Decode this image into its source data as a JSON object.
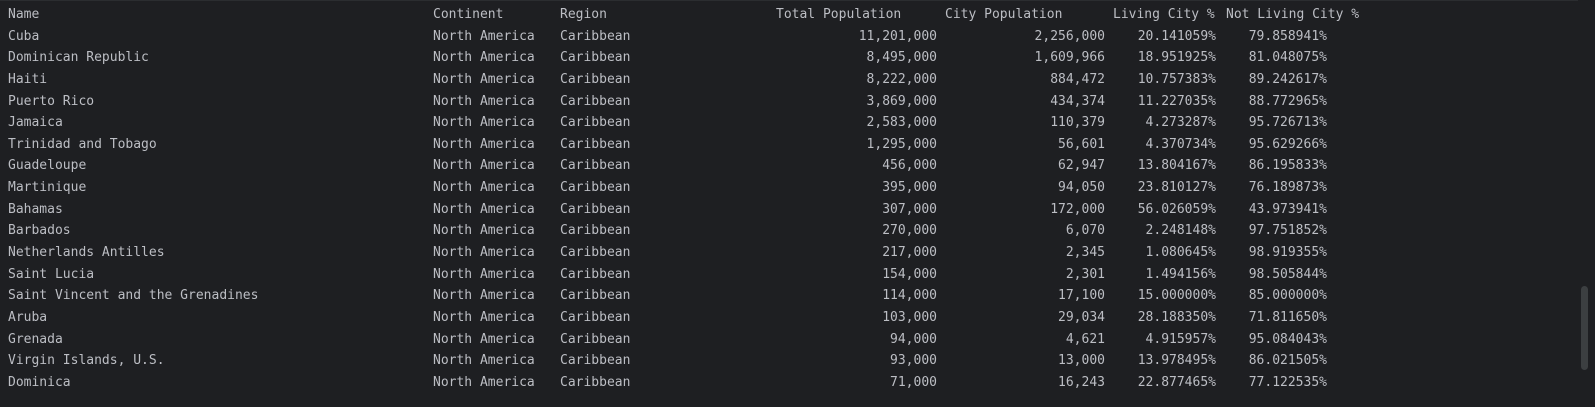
{
  "table": {
    "columns": {
      "name": "Name",
      "continent": "Continent",
      "region": "Region",
      "total_population": "Total Population",
      "city_population": "City Population",
      "living_city_pct": "Living City %",
      "not_living_city_pct": "Not Living City %"
    },
    "rows": [
      {
        "name": "Cuba",
        "continent": "North America",
        "region": "Caribbean",
        "total": "11,201,000",
        "city": "2,256,000",
        "living": "20.141059%",
        "not_living": "79.858941%"
      },
      {
        "name": "Dominican Republic",
        "continent": "North America",
        "region": "Caribbean",
        "total": "8,495,000",
        "city": "1,609,966",
        "living": "18.951925%",
        "not_living": "81.048075%"
      },
      {
        "name": "Haiti",
        "continent": "North America",
        "region": "Caribbean",
        "total": "8,222,000",
        "city": "884,472",
        "living": "10.757383%",
        "not_living": "89.242617%"
      },
      {
        "name": "Puerto Rico",
        "continent": "North America",
        "region": "Caribbean",
        "total": "3,869,000",
        "city": "434,374",
        "living": "11.227035%",
        "not_living": "88.772965%"
      },
      {
        "name": "Jamaica",
        "continent": "North America",
        "region": "Caribbean",
        "total": "2,583,000",
        "city": "110,379",
        "living": "4.273287%",
        "not_living": "95.726713%"
      },
      {
        "name": "Trinidad and Tobago",
        "continent": "North America",
        "region": "Caribbean",
        "total": "1,295,000",
        "city": "56,601",
        "living": "4.370734%",
        "not_living": "95.629266%"
      },
      {
        "name": "Guadeloupe",
        "continent": "North America",
        "region": "Caribbean",
        "total": "456,000",
        "city": "62,947",
        "living": "13.804167%",
        "not_living": "86.195833%"
      },
      {
        "name": "Martinique",
        "continent": "North America",
        "region": "Caribbean",
        "total": "395,000",
        "city": "94,050",
        "living": "23.810127%",
        "not_living": "76.189873%"
      },
      {
        "name": "Bahamas",
        "continent": "North America",
        "region": "Caribbean",
        "total": "307,000",
        "city": "172,000",
        "living": "56.026059%",
        "not_living": "43.973941%"
      },
      {
        "name": "Barbados",
        "continent": "North America",
        "region": "Caribbean",
        "total": "270,000",
        "city": "6,070",
        "living": "2.248148%",
        "not_living": "97.751852%"
      },
      {
        "name": "Netherlands Antilles",
        "continent": "North America",
        "region": "Caribbean",
        "total": "217,000",
        "city": "2,345",
        "living": "1.080645%",
        "not_living": "98.919355%"
      },
      {
        "name": "Saint Lucia",
        "continent": "North America",
        "region": "Caribbean",
        "total": "154,000",
        "city": "2,301",
        "living": "1.494156%",
        "not_living": "98.505844%"
      },
      {
        "name": "Saint Vincent and the Grenadines",
        "continent": "North America",
        "region": "Caribbean",
        "total": "114,000",
        "city": "17,100",
        "living": "15.000000%",
        "not_living": "85.000000%"
      },
      {
        "name": "Aruba",
        "continent": "North America",
        "region": "Caribbean",
        "total": "103,000",
        "city": "29,034",
        "living": "28.188350%",
        "not_living": "71.811650%"
      },
      {
        "name": "Grenada",
        "continent": "North America",
        "region": "Caribbean",
        "total": "94,000",
        "city": "4,621",
        "living": "4.915957%",
        "not_living": "95.084043%"
      },
      {
        "name": "Virgin Islands, U.S.",
        "continent": "North America",
        "region": "Caribbean",
        "total": "93,000",
        "city": "13,000",
        "living": "13.978495%",
        "not_living": "86.021505%"
      },
      {
        "name": "Dominica",
        "continent": "North America",
        "region": "Caribbean",
        "total": "71,000",
        "city": "16,243",
        "living": "22.877465%",
        "not_living": "77.122535%"
      }
    ]
  },
  "colors": {
    "background": "#1e1f22",
    "text": "#bcbec4",
    "scroll_thumb": "#3c3f41"
  }
}
